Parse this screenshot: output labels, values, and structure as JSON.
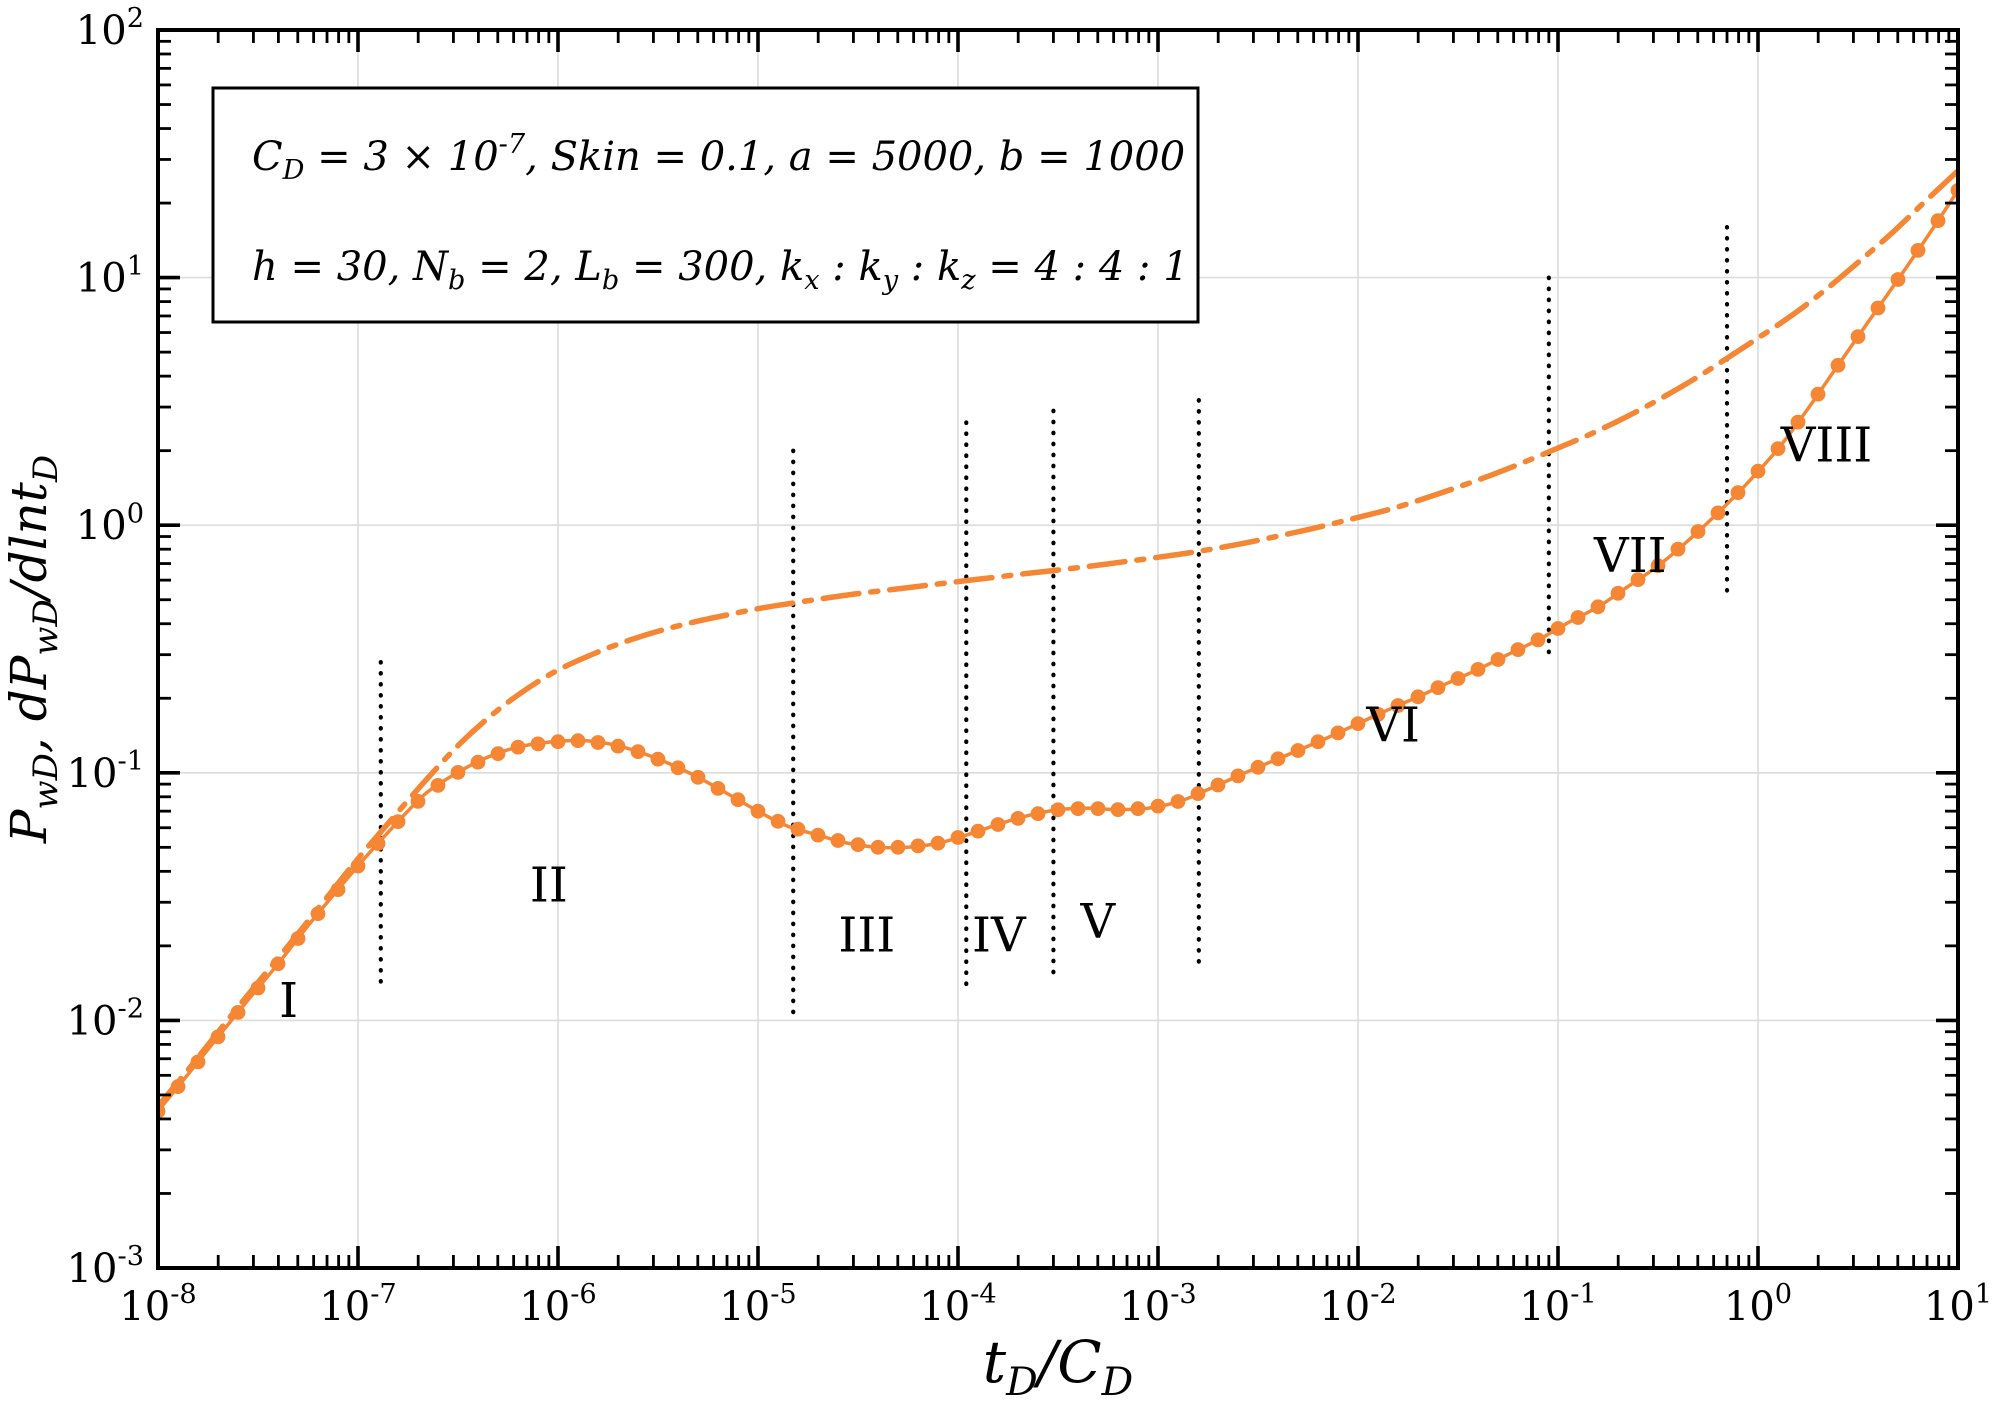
{
  "figure": {
    "background": "#ffffff",
    "accent_color": "#F58634",
    "grid_color": "#dcdcdc",
    "annotation_box": {
      "lines": [
        "C_{D} = 3 × 10^{-7}, Skin = 0.1, a = 5000, b = 1000",
        "h = 30, N_{b} = 2, L_{b} = 300, k_{x} : k_{y} : k_{z} = 4 : 4 : 1"
      ]
    }
  },
  "chart_data": {
    "type": "line",
    "title": "",
    "xlabel": "t_{D}/C_{D}",
    "ylabel": "P_{wD}, dP_{wD}/dlnt_{D}",
    "xscale": "log",
    "yscale": "log",
    "xlim": [
      1e-08,
      10
    ],
    "ylim": [
      0.001,
      100
    ],
    "grid": true,
    "legend": "none",
    "x_tick_exponents": [
      -8,
      -7,
      -6,
      -5,
      -4,
      -3,
      -2,
      -1,
      0,
      1
    ],
    "y_tick_exponents": [
      -3,
      -2,
      -1,
      0,
      1,
      2
    ],
    "series": [
      {
        "name": "pressure-PwD",
        "label": "P_wD",
        "line_style": "dashdot",
        "color": "#F58634",
        "points": [
          [
            1e-08,
            0.0045
          ],
          [
            1.5e-08,
            0.0067
          ],
          [
            2.2e-08,
            0.0099
          ],
          [
            3.2e-08,
            0.0144
          ],
          [
            4.7e-08,
            0.021
          ],
          [
            6.8e-08,
            0.0305
          ],
          [
            1e-07,
            0.045
          ],
          [
            1.5e-07,
            0.066
          ],
          [
            2.2e-07,
            0.094
          ],
          [
            3.2e-07,
            0.13
          ],
          [
            4.7e-07,
            0.172
          ],
          [
            6.8e-07,
            0.215
          ],
          [
            1e-06,
            0.26
          ],
          [
            1.5e-06,
            0.302
          ],
          [
            2.2e-06,
            0.34
          ],
          [
            3.2e-06,
            0.374
          ],
          [
            4.7e-06,
            0.405
          ],
          [
            6.8e-06,
            0.432
          ],
          [
            1e-05,
            0.46
          ],
          [
            1.5e-05,
            0.485
          ],
          [
            2.2e-05,
            0.508
          ],
          [
            3.2e-05,
            0.53
          ],
          [
            4.7e-05,
            0.55
          ],
          [
            6.8e-05,
            0.57
          ],
          [
            0.0001,
            0.592
          ],
          [
            0.00015,
            0.615
          ],
          [
            0.00022,
            0.638
          ],
          [
            0.00032,
            0.66
          ],
          [
            0.00047,
            0.685
          ],
          [
            0.00068,
            0.712
          ],
          [
            0.001,
            0.742
          ],
          [
            0.0015,
            0.778
          ],
          [
            0.0022,
            0.82
          ],
          [
            0.0032,
            0.87
          ],
          [
            0.0047,
            0.93
          ],
          [
            0.0068,
            0.995
          ],
          [
            0.01,
            1.075
          ],
          [
            0.015,
            1.17
          ],
          [
            0.022,
            1.29
          ],
          [
            0.032,
            1.43
          ],
          [
            0.047,
            1.6
          ],
          [
            0.068,
            1.8
          ],
          [
            0.1,
            2.05
          ],
          [
            0.15,
            2.36
          ],
          [
            0.22,
            2.74
          ],
          [
            0.32,
            3.22
          ],
          [
            0.47,
            3.85
          ],
          [
            0.68,
            4.65
          ],
          [
            1.0,
            5.7
          ],
          [
            1.5,
            7.1
          ],
          [
            2.2,
            9.0
          ],
          [
            3.2,
            11.6
          ],
          [
            4.7,
            15.2
          ],
          [
            6.8,
            20.2
          ],
          [
            10.0,
            27.0
          ]
        ]
      },
      {
        "name": "derivative-dPwD-dlntD",
        "label": "dP_wD/dlnt_D",
        "line_style": "solid",
        "marker": "circle",
        "color": "#F58634",
        "points": [
          [
            1e-08,
            0.0043
          ],
          [
            1.4e-08,
            0.006
          ],
          [
            2e-08,
            0.0086
          ],
          [
            2.8e-08,
            0.012
          ],
          [
            4e-08,
            0.017
          ],
          [
            5.6e-08,
            0.024
          ],
          [
            8e-08,
            0.034
          ],
          [
            1.1e-07,
            0.046
          ],
          [
            1.6e-07,
            0.064
          ],
          [
            2.2e-07,
            0.083
          ],
          [
            3.2e-07,
            0.101
          ],
          [
            4.5e-07,
            0.116
          ],
          [
            6.3e-07,
            0.127
          ],
          [
            9e-07,
            0.133
          ],
          [
            1.3e-06,
            0.135
          ],
          [
            1.8e-06,
            0.131
          ],
          [
            2.5e-06,
            0.122
          ],
          [
            3.5e-06,
            0.11
          ],
          [
            5e-06,
            0.096
          ],
          [
            7.1e-06,
            0.082
          ],
          [
            1e-05,
            0.07
          ],
          [
            1.4e-05,
            0.061
          ],
          [
            2e-05,
            0.056
          ],
          [
            2.8e-05,
            0.052
          ],
          [
            4e-05,
            0.05
          ],
          [
            5.6e-05,
            0.05
          ],
          [
            8e-05,
            0.052
          ],
          [
            0.00011,
            0.056
          ],
          [
            0.00016,
            0.062
          ],
          [
            0.00022,
            0.067
          ],
          [
            0.00032,
            0.071
          ],
          [
            0.00045,
            0.072
          ],
          [
            0.00063,
            0.071
          ],
          [
            0.0009,
            0.072
          ],
          [
            0.0013,
            0.077
          ],
          [
            0.0018,
            0.086
          ],
          [
            0.0025,
            0.097
          ],
          [
            0.0035,
            0.109
          ],
          [
            0.005,
            0.123
          ],
          [
            0.0071,
            0.139
          ],
          [
            0.01,
            0.158
          ],
          [
            0.014,
            0.179
          ],
          [
            0.02,
            0.203
          ],
          [
            0.028,
            0.23
          ],
          [
            0.04,
            0.262
          ],
          [
            0.056,
            0.3
          ],
          [
            0.08,
            0.345
          ],
          [
            0.11,
            0.4
          ],
          [
            0.16,
            0.47
          ],
          [
            0.22,
            0.56
          ],
          [
            0.32,
            0.69
          ],
          [
            0.45,
            0.87
          ],
          [
            0.63,
            1.12
          ],
          [
            0.9,
            1.5
          ],
          [
            1.3,
            2.1
          ],
          [
            1.8,
            3.0
          ],
          [
            2.5,
            4.4
          ],
          [
            3.5,
            6.5
          ],
          [
            5.0,
            9.8
          ],
          [
            7.1,
            14.8
          ],
          [
            10.0,
            22.5
          ]
        ]
      }
    ],
    "regime_boundaries": [
      {
        "x": 1.3e-07,
        "y_min": 0.0135,
        "y_max": 0.28
      },
      {
        "x": 1.5e-05,
        "y_min": 0.01,
        "y_max": 2.0
      },
      {
        "x": 0.00011,
        "y_min": 0.013,
        "y_max": 2.6
      },
      {
        "x": 0.0003,
        "y_min": 0.015,
        "y_max": 2.9
      },
      {
        "x": 0.0016,
        "y_min": 0.016,
        "y_max": 3.2
      },
      {
        "x": 0.09,
        "y_min": 0.3,
        "y_max": 10.0
      },
      {
        "x": 0.7,
        "y_min": 0.5,
        "y_max": 16.0
      }
    ],
    "regime_labels": [
      {
        "text": "I",
        "x": 4.5e-08,
        "y": 0.012
      },
      {
        "text": "II",
        "x": 9e-07,
        "y": 0.035
      },
      {
        "text": "III",
        "x": 3.5e-05,
        "y": 0.022
      },
      {
        "text": "IV",
        "x": 0.00016,
        "y": 0.022
      },
      {
        "text": "V",
        "x": 0.0005,
        "y": 0.025
      },
      {
        "text": "VI",
        "x": 0.015,
        "y": 0.155
      },
      {
        "text": "VII",
        "x": 0.23,
        "y": 0.75
      },
      {
        "text": "VIII",
        "x": 2.2,
        "y": 2.1
      }
    ]
  }
}
